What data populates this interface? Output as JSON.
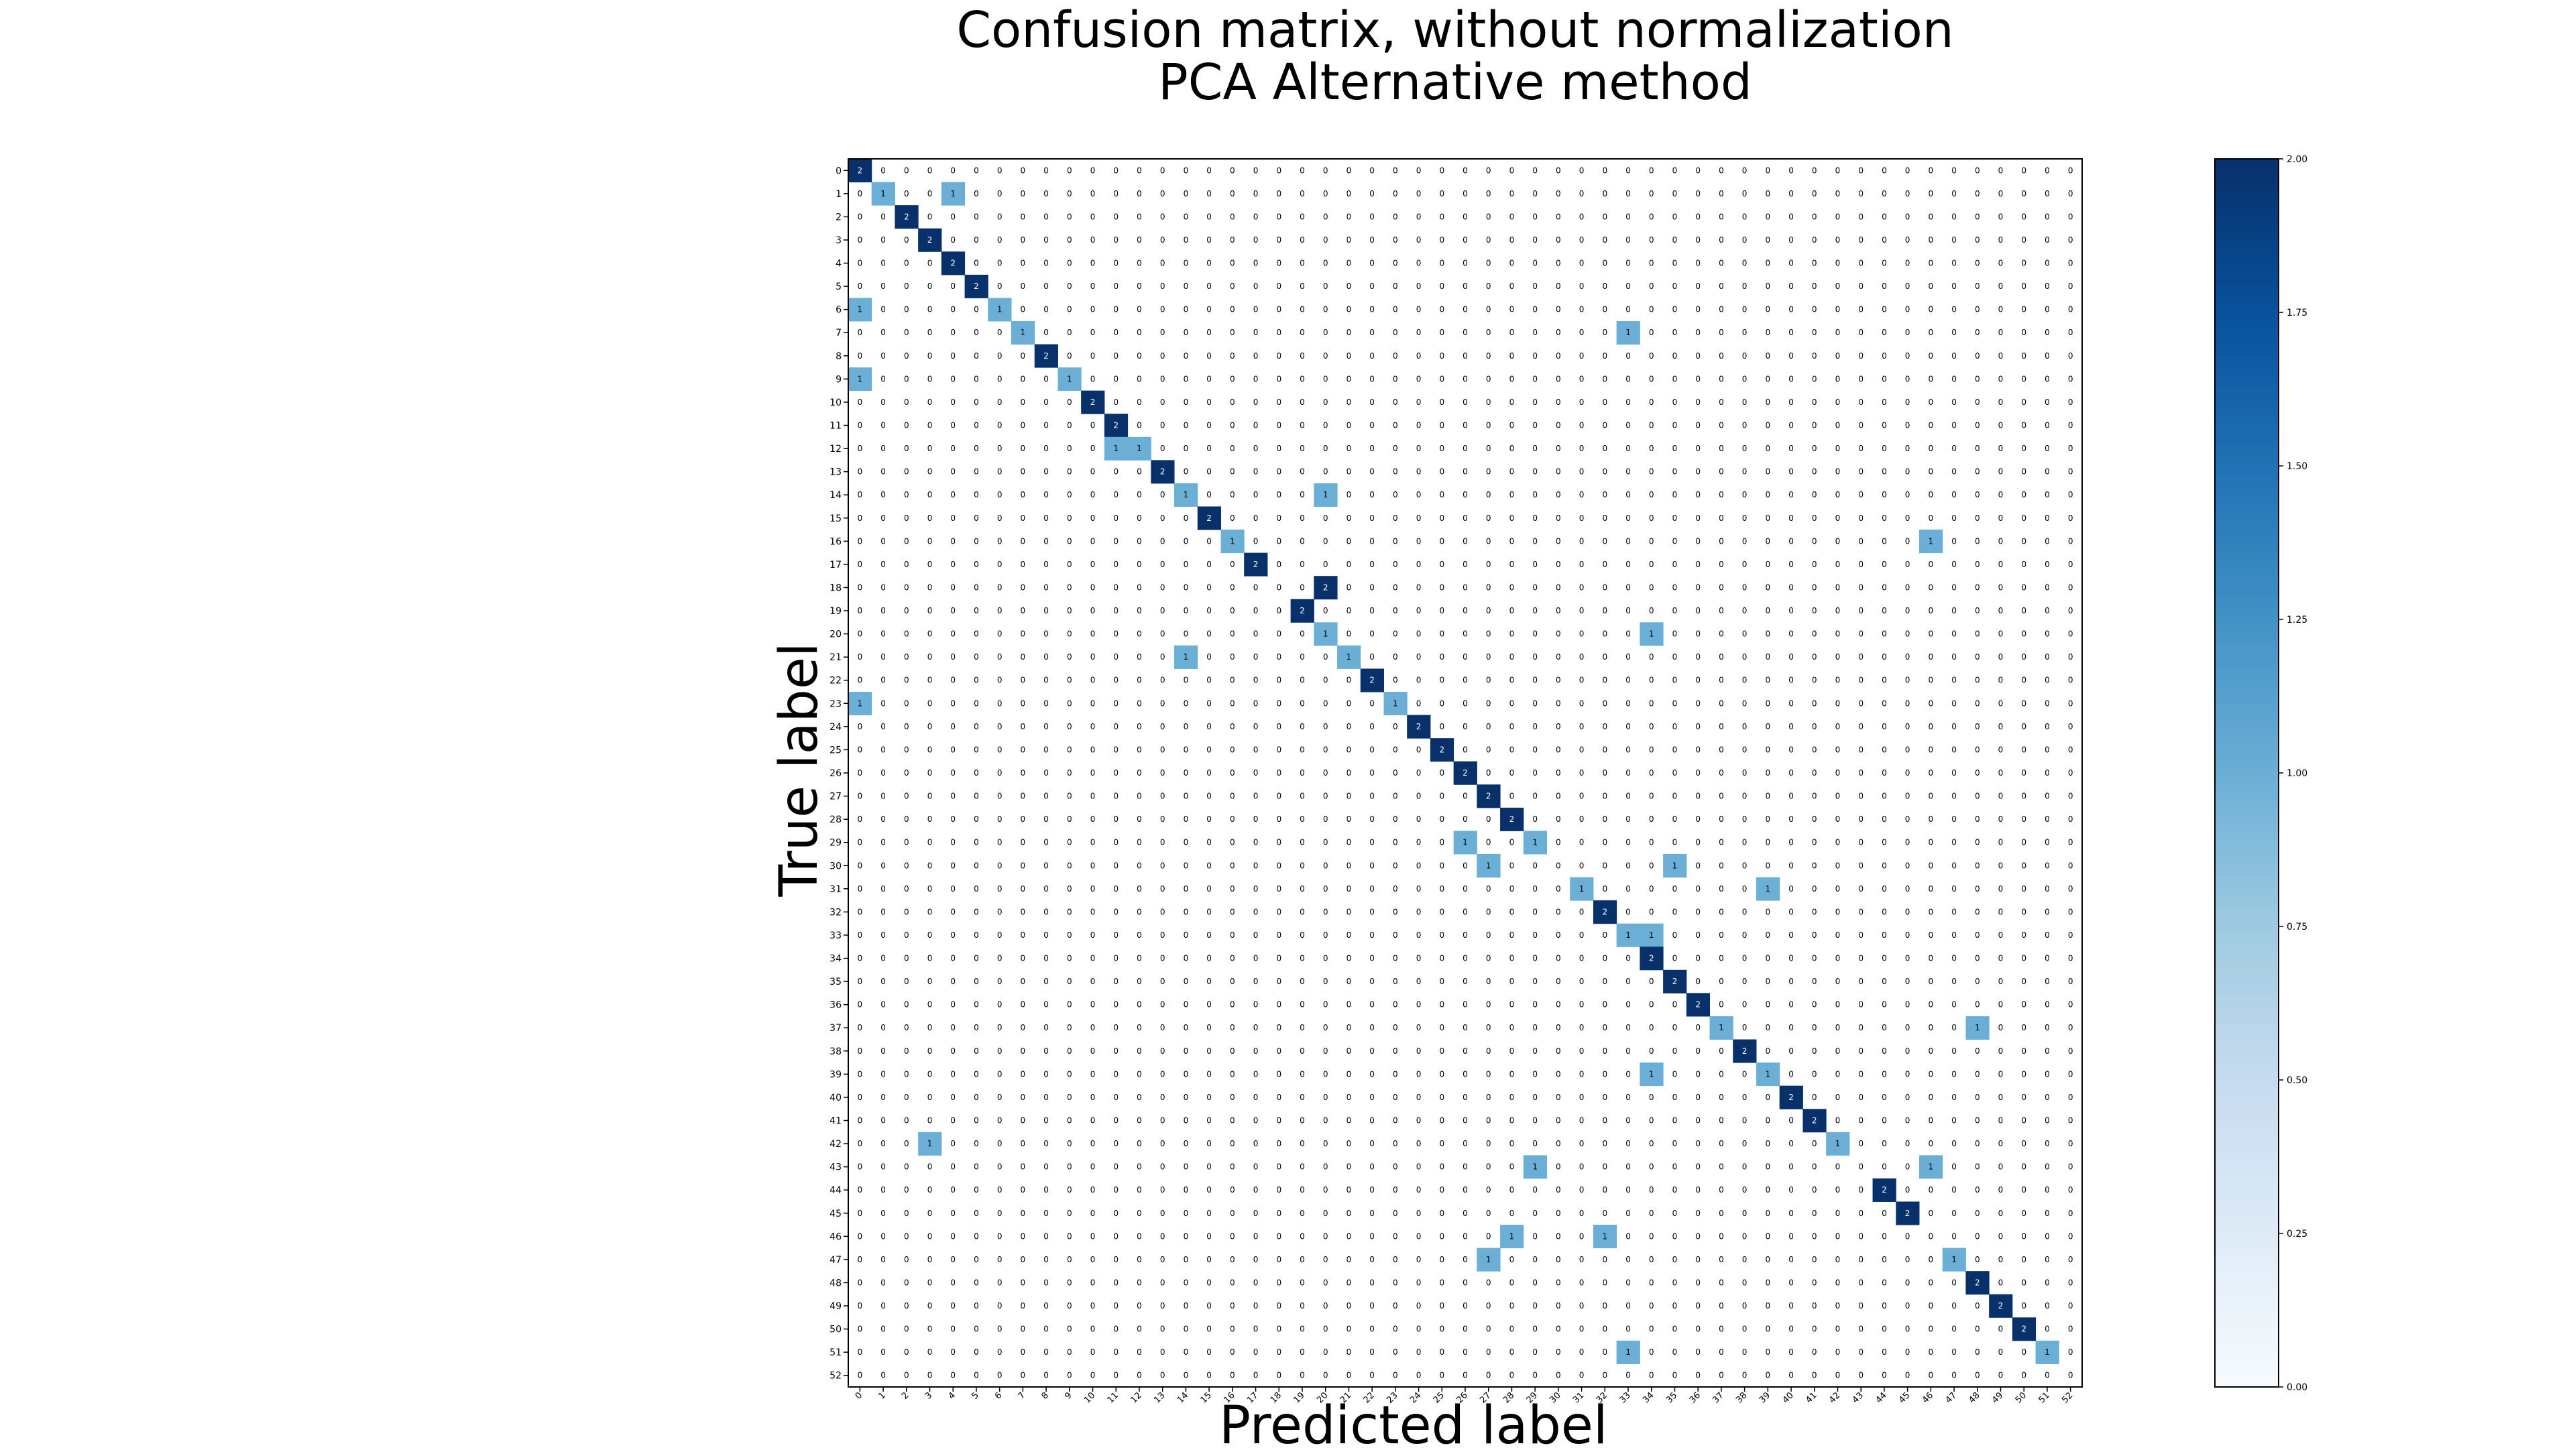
{
  "chart_data": {
    "type": "heatmap",
    "title": "Confusion matrix, without normalization",
    "subtitle": "PCA Alternative method",
    "xlabel": "Predicted label",
    "ylabel": "True label",
    "x_ticks": [
      "0",
      "1",
      "2",
      "3",
      "4",
      "5",
      "6",
      "7",
      "8",
      "9",
      "10",
      "11",
      "12",
      "13",
      "14",
      "15",
      "16",
      "17",
      "18",
      "19",
      "20",
      "21",
      "22",
      "23",
      "24",
      "25",
      "26",
      "27",
      "28",
      "29",
      "30",
      "31",
      "32",
      "33",
      "34",
      "35",
      "36",
      "37",
      "38",
      "39",
      "40",
      "41",
      "42",
      "43",
      "44",
      "45",
      "46",
      "47",
      "48",
      "49",
      "50",
      "51",
      "52"
    ],
    "y_ticks": [
      "0",
      "1",
      "2",
      "3",
      "4",
      "5",
      "6",
      "7",
      "8",
      "9",
      "10",
      "11",
      "12",
      "13",
      "14",
      "15",
      "16",
      "17",
      "18",
      "19",
      "20",
      "21",
      "22",
      "23",
      "24",
      "25",
      "26",
      "27",
      "28",
      "29",
      "30",
      "31",
      "32",
      "33",
      "34",
      "35",
      "36",
      "37",
      "38",
      "39",
      "40",
      "41",
      "42",
      "43",
      "44",
      "45",
      "46",
      "47",
      "48",
      "49",
      "50",
      "51",
      "52"
    ],
    "colorscale": "Blues",
    "vmin": 0,
    "vmax": 2,
    "colorbar_ticks": [
      "0.00",
      "0.25",
      "0.50",
      "0.75",
      "1.00",
      "1.25",
      "1.50",
      "1.75",
      "2.00"
    ],
    "colors": {
      "low": "#f7fbff",
      "mid": "#6baed6",
      "high": "#08306b"
    },
    "grid": false,
    "nonzero_cells": [
      [
        0,
        0,
        2
      ],
      [
        1,
        1,
        1
      ],
      [
        1,
        4,
        1
      ],
      [
        2,
        2,
        2
      ],
      [
        3,
        3,
        2
      ],
      [
        4,
        4,
        2
      ],
      [
        5,
        5,
        2
      ],
      [
        6,
        0,
        1
      ],
      [
        6,
        6,
        1
      ],
      [
        7,
        7,
        1
      ],
      [
        7,
        33,
        1
      ],
      [
        8,
        8,
        2
      ],
      [
        9,
        0,
        1
      ],
      [
        9,
        9,
        1
      ],
      [
        10,
        10,
        2
      ],
      [
        11,
        11,
        2
      ],
      [
        12,
        11,
        1
      ],
      [
        12,
        12,
        1
      ],
      [
        13,
        13,
        2
      ],
      [
        14,
        14,
        1
      ],
      [
        14,
        20,
        1
      ],
      [
        15,
        15,
        2
      ],
      [
        16,
        16,
        1
      ],
      [
        16,
        46,
        1
      ],
      [
        17,
        17,
        2
      ],
      [
        18,
        20,
        2
      ],
      [
        19,
        19,
        2
      ],
      [
        20,
        20,
        1
      ],
      [
        20,
        34,
        1
      ],
      [
        21,
        14,
        1
      ],
      [
        21,
        21,
        1
      ],
      [
        22,
        22,
        2
      ],
      [
        23,
        0,
        1
      ],
      [
        23,
        23,
        1
      ],
      [
        24,
        24,
        2
      ],
      [
        25,
        25,
        2
      ],
      [
        26,
        26,
        2
      ],
      [
        27,
        27,
        2
      ],
      [
        28,
        28,
        2
      ],
      [
        29,
        26,
        1
      ],
      [
        29,
        29,
        1
      ],
      [
        30,
        27,
        1
      ],
      [
        30,
        35,
        1
      ],
      [
        31,
        31,
        1
      ],
      [
        31,
        39,
        1
      ],
      [
        32,
        32,
        2
      ],
      [
        33,
        33,
        1
      ],
      [
        33,
        34,
        1
      ],
      [
        34,
        34,
        2
      ],
      [
        35,
        35,
        2
      ],
      [
        36,
        36,
        2
      ],
      [
        37,
        37,
        1
      ],
      [
        37,
        48,
        1
      ],
      [
        38,
        38,
        2
      ],
      [
        39,
        34,
        1
      ],
      [
        39,
        39,
        1
      ],
      [
        40,
        40,
        2
      ],
      [
        41,
        41,
        2
      ],
      [
        42,
        3,
        1
      ],
      [
        42,
        42,
        1
      ],
      [
        43,
        29,
        1
      ],
      [
        43,
        46,
        1
      ],
      [
        44,
        44,
        2
      ],
      [
        45,
        45,
        2
      ],
      [
        46,
        28,
        1
      ],
      [
        46,
        32,
        1
      ],
      [
        47,
        27,
        1
      ],
      [
        47,
        47,
        1
      ],
      [
        48,
        48,
        2
      ],
      [
        49,
        49,
        2
      ],
      [
        50,
        50,
        2
      ],
      [
        51,
        33,
        1
      ],
      [
        51,
        51,
        1
      ]
    ]
  }
}
